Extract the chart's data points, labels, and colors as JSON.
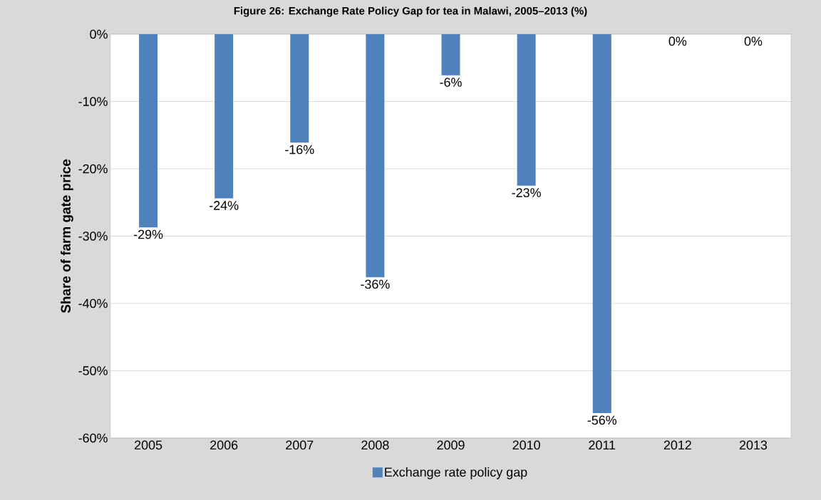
{
  "chart_data": {
    "type": "bar",
    "title": "**Figure 26: Exchange Rate Policy Gap for tea in Malawi, 2005–2013 (%)**",
    "ylabel": "**Share of farm gate price**",
    "categories": [
      "2005",
      "2006",
      "2007",
      "2008",
      "2009",
      "2010",
      "2011",
      "2012",
      "2013"
    ],
    "series": [
      {
        "name": "Exchange rate policy gap",
        "color": "#4f81bd",
        "values": [
          -28.7,
          -24.4,
          -16.1,
          -36.1,
          -6.1,
          -22.5,
          -56.3,
          0,
          0
        ],
        "value_labels": [
          "-29%",
          "-24%",
          "-16%",
          "-36%",
          "-6%",
          "-23%",
          "-56%",
          "0%",
          "0%"
        ]
      }
    ],
    "ylim": [
      -60,
      0
    ],
    "yticks": [
      {
        "value": -60,
        "label": "-60%"
      },
      {
        "value": -50,
        "label": "-50%"
      },
      {
        "value": -40,
        "label": "-40%"
      },
      {
        "value": -30,
        "label": "-30%"
      },
      {
        "value": -20,
        "label": "-20%"
      },
      {
        "value": -10,
        "label": "-10%"
      },
      {
        "value": 0,
        "label": "0%"
      }
    ],
    "grid": "y",
    "legend": "bottom"
  }
}
